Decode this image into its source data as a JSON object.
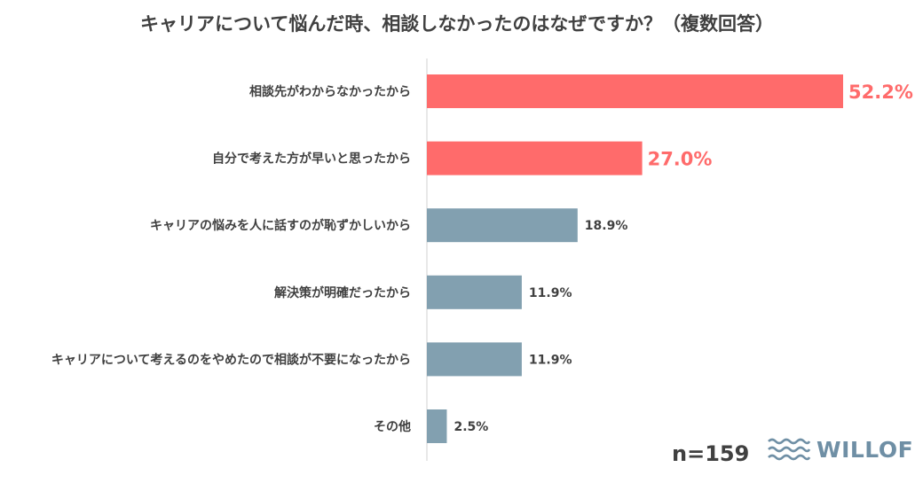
{
  "chart_data": {
    "type": "bar",
    "orientation": "horizontal",
    "title": "キャリアについて悩んだ時、相談しなかったのはなぜですか？（複数回答）",
    "categories": [
      "相談先がわからなかったから",
      "自分で考えた方が早いと思ったから",
      "キャリアの悩みを人に話すのが恥ずかしいから",
      "解決策が明確だったから",
      "キャリアについて考えるのをやめたので相談が不要になったから",
      "その他"
    ],
    "values": [
      52.2,
      27.0,
      18.9,
      11.9,
      11.9,
      2.5
    ],
    "value_labels": [
      "52.2%",
      "27.0%",
      "18.9%",
      "11.9%",
      "11.9%",
      "2.5%"
    ],
    "highlight": [
      true,
      true,
      false,
      false,
      false,
      false
    ],
    "colors": {
      "highlight": "#ff6b6b",
      "normal": "#82a0b0",
      "axis": "#d0d0d0",
      "text": "#404040"
    },
    "xlim": [
      0,
      52.2
    ],
    "grid": false,
    "legend": "none"
  },
  "footer": {
    "sample_size": "n=159",
    "logo_text": "WILLOF",
    "logo_icon": "waves-icon"
  }
}
